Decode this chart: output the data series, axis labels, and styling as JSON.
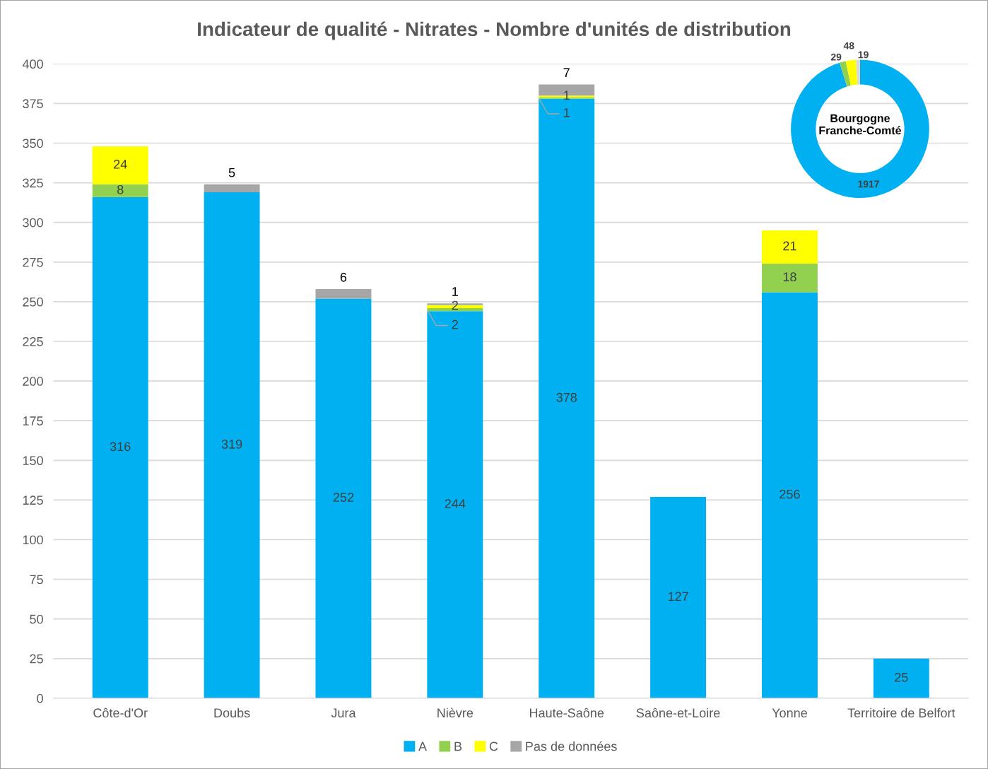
{
  "chart_data": [
    {
      "type": "bar",
      "title": "Indicateur de qualité - Nitrates - Nombre d'unités de distribution",
      "stacked": true,
      "categories": [
        "Côte-d'Or",
        "Doubs",
        "Jura",
        "Nièvre",
        "Haute-Saône",
        "Saône-et-Loire",
        "Yonne",
        "Territoire de Belfort"
      ],
      "series": [
        {
          "name": "A",
          "color": "#00b0f0",
          "values": [
            316,
            319,
            252,
            244,
            378,
            127,
            256,
            25
          ],
          "value_labels": [
            "316",
            "319",
            "252",
            "244",
            "378",
            "127",
            "256",
            "25"
          ]
        },
        {
          "name": "B",
          "color": "#92d050",
          "values": [
            8,
            null,
            null,
            2,
            1,
            null,
            18,
            null
          ],
          "value_labels": [
            "8",
            null,
            null,
            "2",
            "1",
            null,
            "18",
            null
          ]
        },
        {
          "name": "C",
          "color": "#ffff00",
          "values": [
            24,
            null,
            null,
            2,
            1,
            null,
            21,
            null
          ],
          "value_labels": [
            "24",
            null,
            null,
            "2",
            "1",
            null,
            "21",
            null
          ]
        },
        {
          "name": "Pas de données",
          "color": "#a6a6a6",
          "values": [
            null,
            5,
            6,
            1,
            7,
            null,
            null,
            null
          ],
          "value_labels": [
            null,
            "5",
            "6",
            "1",
            "7",
            null,
            null,
            null
          ]
        }
      ],
      "ylim": [
        0,
        400
      ],
      "yticks": [
        0,
        25,
        50,
        75,
        100,
        125,
        150,
        175,
        200,
        225,
        250,
        275,
        300,
        325,
        350,
        375,
        400
      ],
      "grid": "y",
      "legend": "bottom"
    },
    {
      "type": "donut",
      "categories": [
        null,
        null,
        null,
        null
      ],
      "values": [
        1917,
        29,
        48,
        19
      ],
      "colors": [
        "#00b0f0",
        "#92d050",
        "#ffff00",
        "#d9d9d9"
      ],
      "data_labels": true,
      "annotations": [
        "Bourgogne\nFranche-Comté"
      ]
    }
  ]
}
